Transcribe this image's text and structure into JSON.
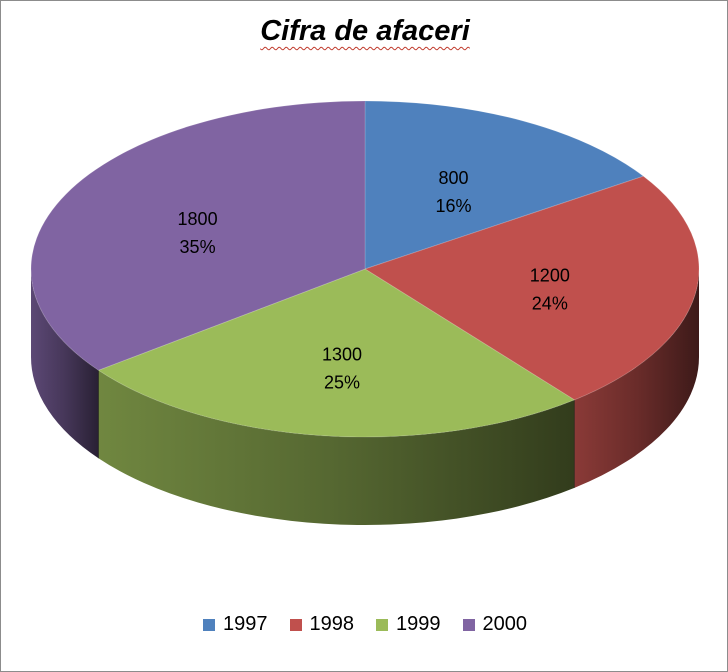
{
  "chart_data": {
    "type": "pie",
    "title": "Cifra de afaceri",
    "categories": [
      "1997",
      "1998",
      "1999",
      "2000"
    ],
    "values": [
      800,
      1200,
      1300,
      1800
    ],
    "percent_labels": [
      "16%",
      "24%",
      "25%",
      "35%"
    ],
    "value_labels": [
      "800",
      "1200",
      "1300",
      "1800"
    ],
    "colors": [
      "#4f81bd",
      "#c0504d",
      "#9bbb59",
      "#8064a2"
    ],
    "style": "3d",
    "legend": "bottom"
  }
}
